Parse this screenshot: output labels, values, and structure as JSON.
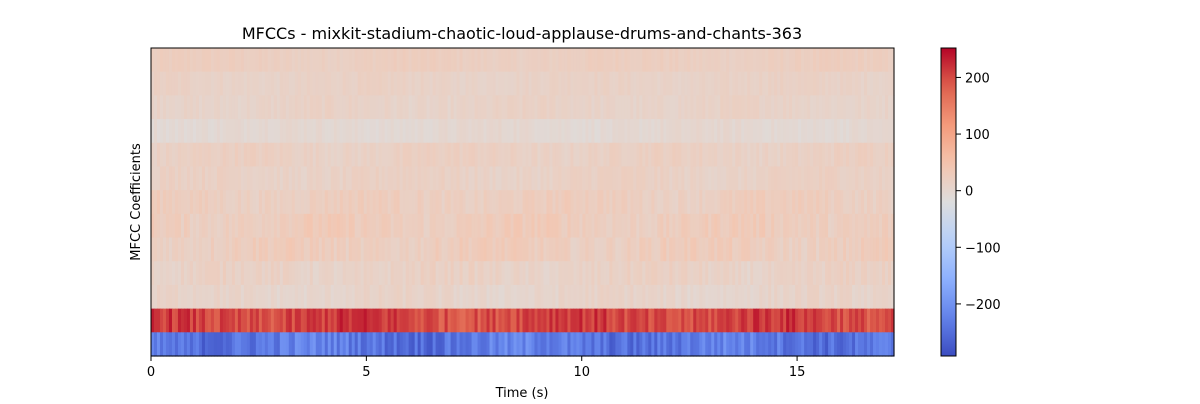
{
  "chart_data": {
    "type": "heatmap",
    "title": "MFCCs - mixkit-stadium-chaotic-loud-applause-drums-and-chants-363",
    "xlabel": "Time (s)",
    "ylabel": "MFCC Coefficients",
    "xlim": [
      0,
      17.25
    ],
    "xticks": [
      0,
      5,
      10,
      15
    ],
    "xtick_labels": [
      "0",
      "5",
      "10",
      "15"
    ],
    "n_coefficients": 13,
    "n_frames": 744,
    "colormap": "coolwarm",
    "vmin": -292,
    "vmax": 252,
    "rows_top_to_bottom": [
      {
        "mean": 20,
        "variation": 6
      },
      {
        "mean": 12,
        "variation": 6
      },
      {
        "mean": 10,
        "variation": 7
      },
      {
        "mean": -3,
        "variation": 7
      },
      {
        "mean": 16,
        "variation": 8
      },
      {
        "mean": 14,
        "variation": 8
      },
      {
        "mean": 22,
        "variation": 10
      },
      {
        "mean": 26,
        "variation": 12
      },
      {
        "mean": 24,
        "variation": 12
      },
      {
        "mean": 12,
        "variation": 10
      },
      {
        "mean": 6,
        "variation": 9
      },
      {
        "mean": 205,
        "variation": 25
      },
      {
        "mean": -235,
        "variation": 30
      }
    ],
    "colorbar": {
      "ticks": [
        200,
        100,
        0,
        -100,
        -200
      ],
      "tick_labels": [
        "200",
        "100",
        "0",
        "−100",
        "−200"
      ]
    },
    "grid": false,
    "legend": "none"
  }
}
